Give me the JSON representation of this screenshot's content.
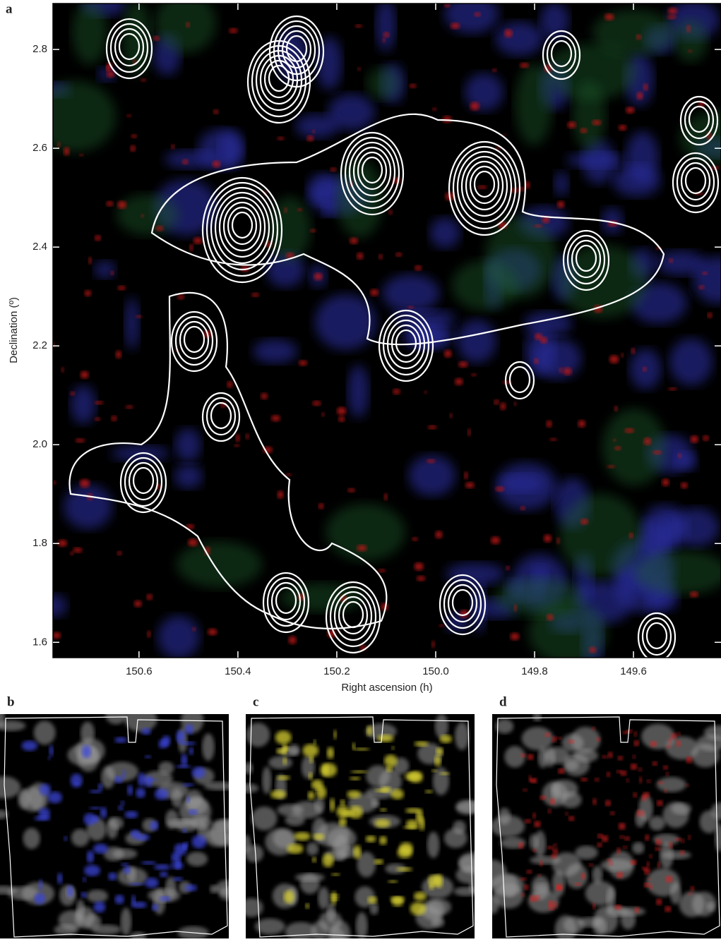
{
  "chart_data": {
    "type": "image",
    "panel_label": "a",
    "x_label": "Right ascension (h)",
    "y_label": "Declination (º)",
    "xlim": [
      150.774,
      149.423
    ],
    "ylim": [
      1.569,
      2.893
    ],
    "xticks": [
      150.6,
      150.4,
      150.2,
      {
        "value": 150,
        "label": "150.0"
      },
      149.8,
      149.6
    ],
    "yticks": [
      1.6,
      1.8,
      {
        "value": 2,
        "label": "2.0"
      },
      2.2,
      2.4,
      2.6,
      2.8
    ]
  },
  "panels": [
    {
      "label": "b",
      "color": "#3a44d8"
    },
    {
      "label": "c",
      "color": "#d8d030"
    },
    {
      "label": "d",
      "color": "#e02020"
    }
  ]
}
